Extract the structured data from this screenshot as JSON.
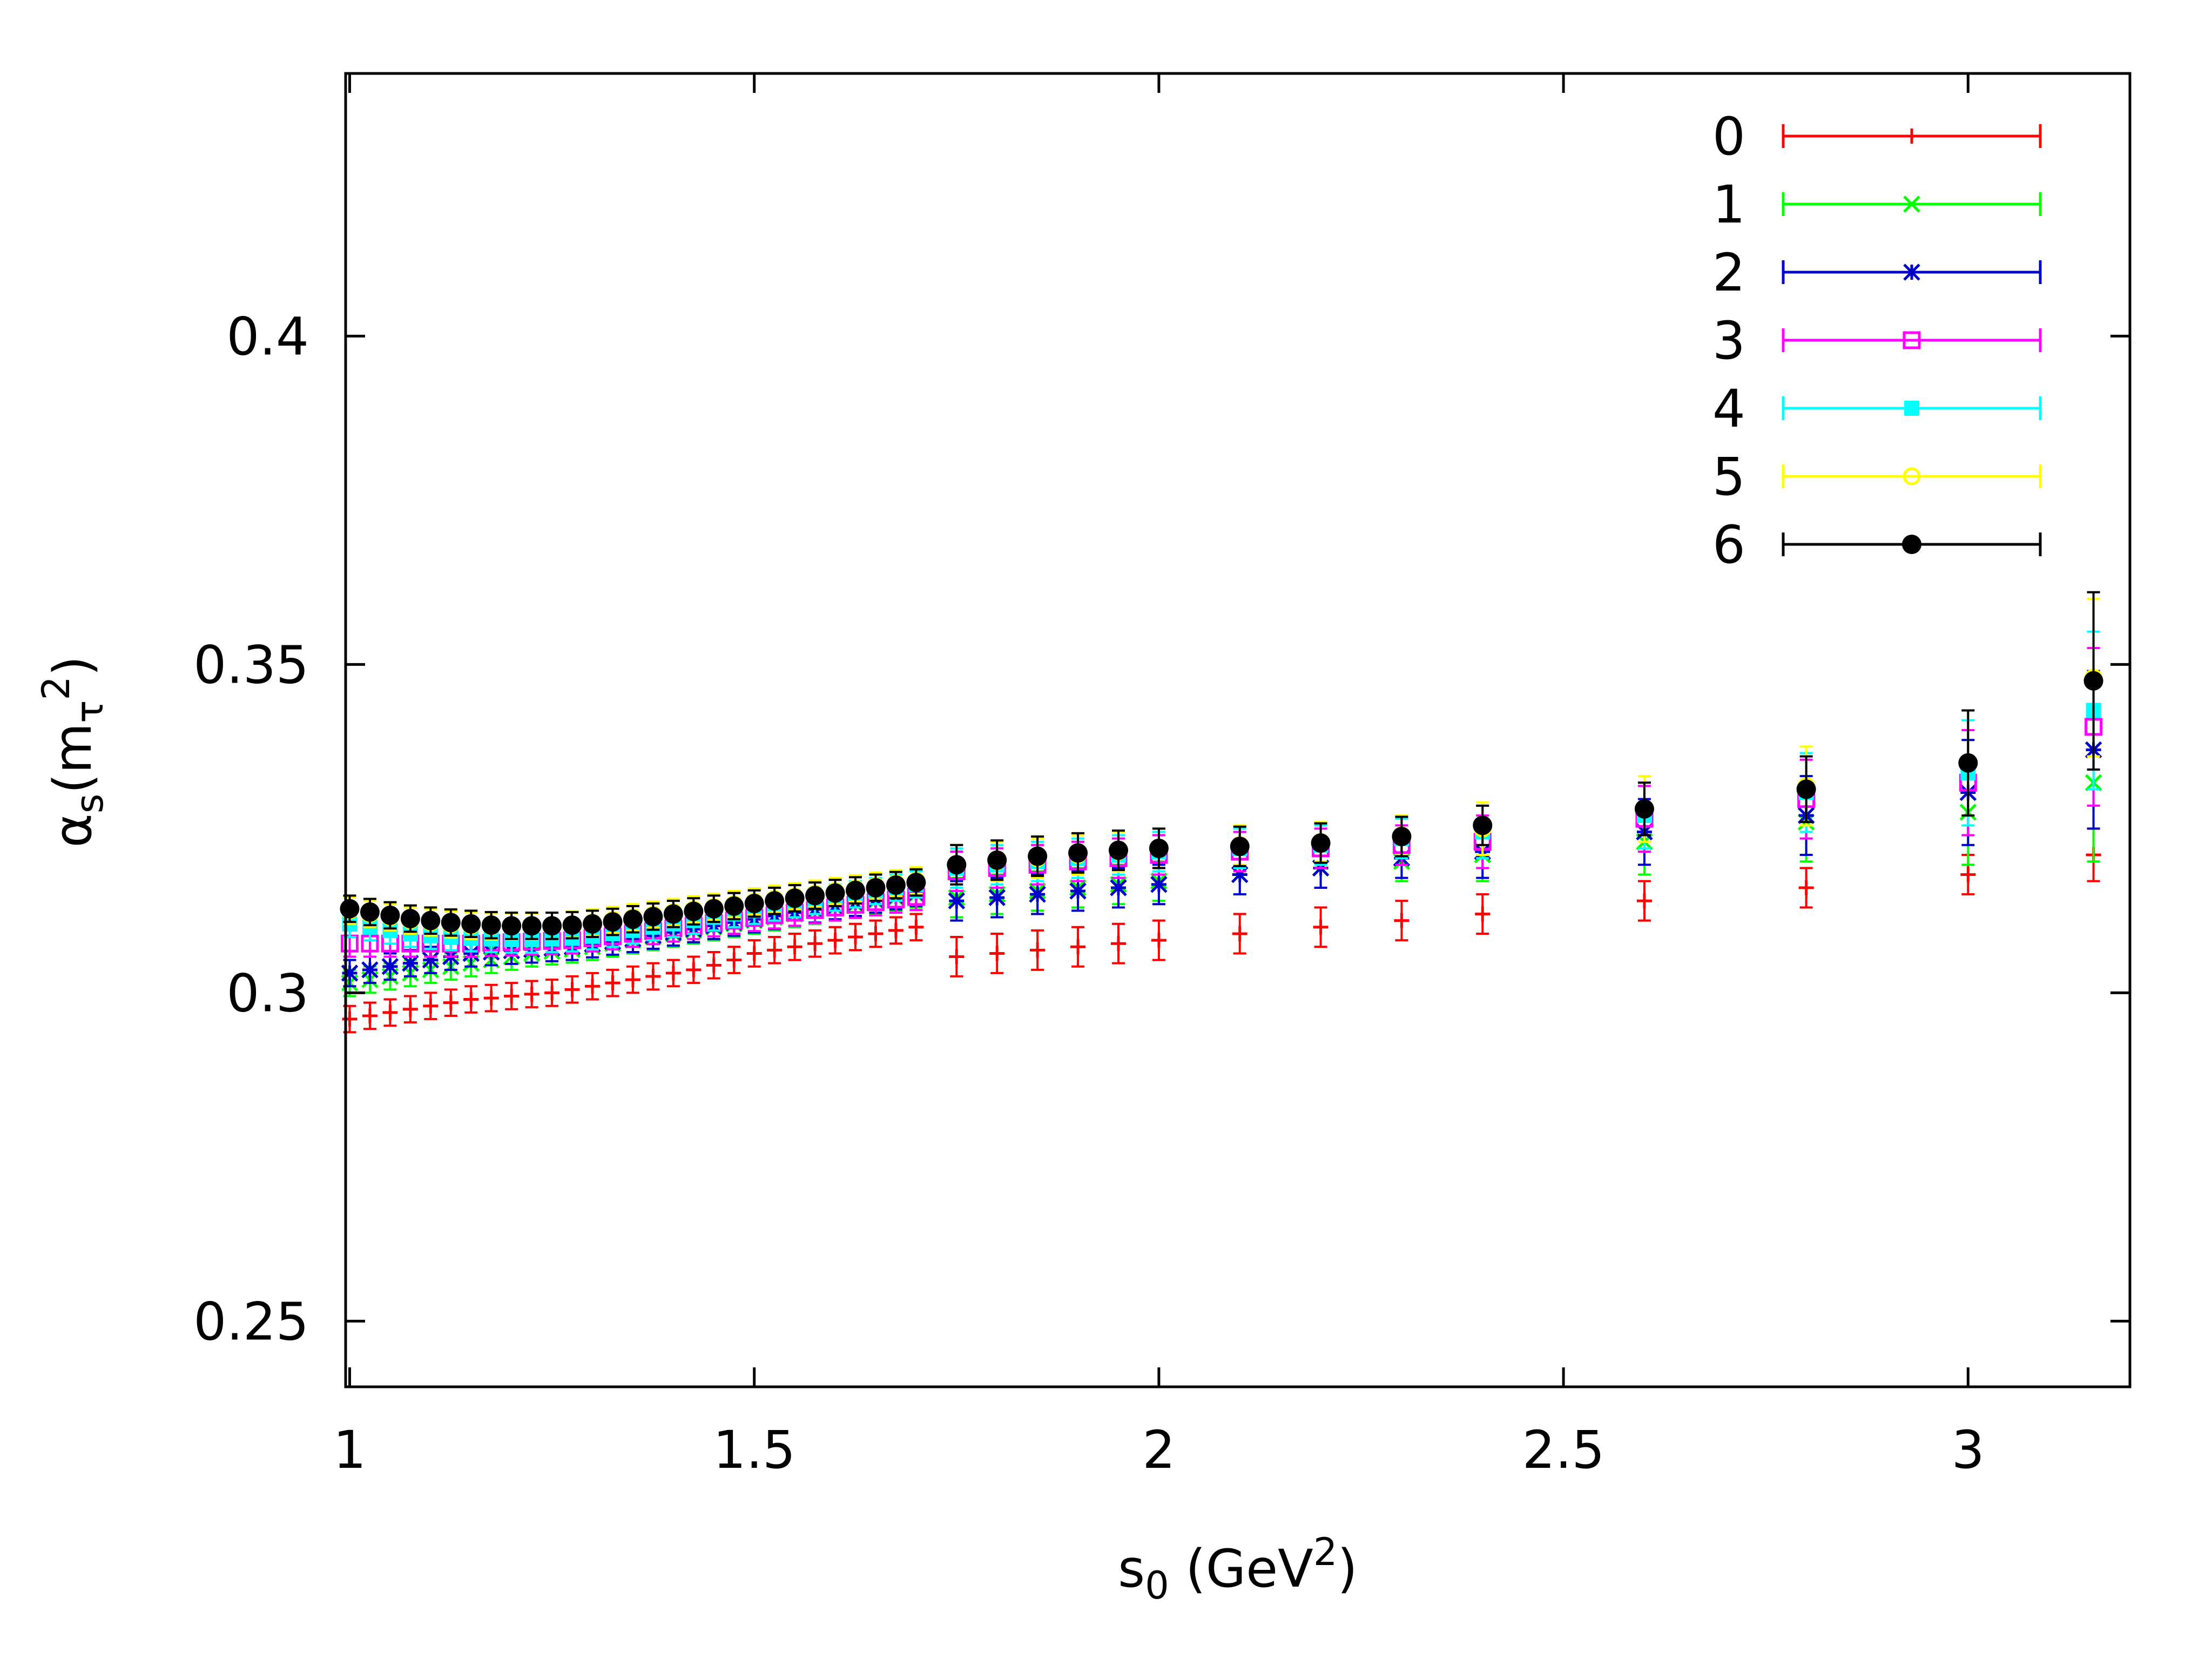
{
  "chart_data": {
    "type": "scatter",
    "title": "",
    "xlabel": {
      "base": "s",
      "sub": "0",
      "paren_open": " (GeV",
      "sup": "2",
      "paren_close": ")"
    },
    "ylabel": {
      "base": "α",
      "sub": "s",
      "open": "(m",
      "sub2": "τ",
      "sup": "2",
      "close": ")"
    },
    "xlim": [
      0.995,
      3.2
    ],
    "ylim": [
      0.24,
      0.44
    ],
    "xticks": [
      {
        "value": 1,
        "label": "1"
      },
      {
        "value": 1.5,
        "label": "1.5"
      },
      {
        "value": 2,
        "label": "2"
      },
      {
        "value": 2.5,
        "label": "2.5"
      },
      {
        "value": 3,
        "label": "3"
      }
    ],
    "yticks": [
      {
        "value": 0.25,
        "label": "0.25"
      },
      {
        "value": 0.3,
        "label": "0.3"
      },
      {
        "value": 0.35,
        "label": "0.35"
      },
      {
        "value": 0.4,
        "label": "0.4"
      }
    ],
    "legend_position": "top-right",
    "x": [
      1.0,
      1.025,
      1.05,
      1.075,
      1.1,
      1.125,
      1.15,
      1.175,
      1.2,
      1.225,
      1.25,
      1.275,
      1.3,
      1.325,
      1.35,
      1.375,
      1.4,
      1.425,
      1.45,
      1.475,
      1.5,
      1.525,
      1.55,
      1.575,
      1.6,
      1.625,
      1.65,
      1.675,
      1.7,
      1.75,
      1.8,
      1.85,
      1.9,
      1.95,
      2.0,
      2.1,
      2.2,
      2.3,
      2.4,
      2.6,
      2.8,
      3.0,
      3.155
    ],
    "series": [
      {
        "name": "0",
        "color": "#ff0000",
        "marker": "plus",
        "values": [
          0.296,
          0.2965,
          0.297,
          0.2975,
          0.298,
          0.2985,
          0.299,
          0.2992,
          0.2995,
          0.2998,
          0.3,
          0.3005,
          0.301,
          0.3015,
          0.302,
          0.3025,
          0.303,
          0.3035,
          0.3042,
          0.305,
          0.306,
          0.3065,
          0.307,
          0.3075,
          0.308,
          0.3085,
          0.309,
          0.3095,
          0.31,
          0.3055,
          0.306,
          0.3065,
          0.307,
          0.3075,
          0.308,
          0.309,
          0.31,
          0.311,
          0.312,
          0.314,
          0.316,
          0.318,
          0.321
        ],
        "errors": [
          0.002,
          0.002,
          0.002,
          0.002,
          0.002,
          0.002,
          0.002,
          0.002,
          0.002,
          0.002,
          0.002,
          0.002,
          0.002,
          0.002,
          0.002,
          0.002,
          0.002,
          0.002,
          0.002,
          0.002,
          0.002,
          0.002,
          0.002,
          0.002,
          0.002,
          0.002,
          0.002,
          0.002,
          0.002,
          0.003,
          0.003,
          0.003,
          0.003,
          0.003,
          0.003,
          0.003,
          0.003,
          0.003,
          0.003,
          0.003,
          0.003,
          0.003,
          0.004
        ]
      },
      {
        "name": "1",
        "color": "#00ff00",
        "marker": "cross",
        "values": [
          0.3015,
          0.302,
          0.3025,
          0.303,
          0.3035,
          0.304,
          0.3045,
          0.305,
          0.3055,
          0.306,
          0.3063,
          0.3066,
          0.307,
          0.3075,
          0.308,
          0.3085,
          0.309,
          0.3095,
          0.31,
          0.3105,
          0.311,
          0.3115,
          0.312,
          0.3125,
          0.313,
          0.3135,
          0.314,
          0.3145,
          0.315,
          0.3145,
          0.315,
          0.3155,
          0.316,
          0.3165,
          0.317,
          0.318,
          0.319,
          0.32,
          0.321,
          0.323,
          0.326,
          0.3275,
          0.332
        ],
        "errors": [
          0.002,
          0.002,
          0.002,
          0.002,
          0.002,
          0.002,
          0.002,
          0.002,
          0.002,
          0.002,
          0.002,
          0.002,
          0.002,
          0.002,
          0.002,
          0.002,
          0.002,
          0.002,
          0.002,
          0.002,
          0.002,
          0.002,
          0.002,
          0.002,
          0.002,
          0.002,
          0.002,
          0.002,
          0.002,
          0.003,
          0.003,
          0.003,
          0.003,
          0.003,
          0.003,
          0.003,
          0.003,
          0.003,
          0.004,
          0.005,
          0.006,
          0.008,
          0.012
        ]
      },
      {
        "name": "2",
        "color": "#0000cc",
        "marker": "star",
        "values": [
          0.303,
          0.3035,
          0.304,
          0.3045,
          0.305,
          0.3055,
          0.306,
          0.3062,
          0.3064,
          0.3066,
          0.3068,
          0.307,
          0.3074,
          0.3078,
          0.3082,
          0.3087,
          0.3092,
          0.3097,
          0.3102,
          0.3107,
          0.3112,
          0.3117,
          0.3122,
          0.3127,
          0.3132,
          0.3137,
          0.3142,
          0.3147,
          0.3152,
          0.314,
          0.3145,
          0.315,
          0.3155,
          0.316,
          0.3165,
          0.318,
          0.319,
          0.3205,
          0.3215,
          0.3245,
          0.327,
          0.3305,
          0.337
        ],
        "errors": [
          0.002,
          0.002,
          0.002,
          0.002,
          0.002,
          0.002,
          0.002,
          0.002,
          0.002,
          0.002,
          0.002,
          0.002,
          0.002,
          0.002,
          0.002,
          0.002,
          0.002,
          0.002,
          0.002,
          0.002,
          0.002,
          0.002,
          0.002,
          0.002,
          0.002,
          0.002,
          0.002,
          0.002,
          0.002,
          0.003,
          0.003,
          0.003,
          0.003,
          0.003,
          0.003,
          0.003,
          0.003,
          0.003,
          0.004,
          0.005,
          0.006,
          0.008,
          0.012
        ]
      },
      {
        "name": "3",
        "color": "#ff00ff",
        "marker": "open-square",
        "values": [
          0.3075,
          0.3075,
          0.3075,
          0.3075,
          0.3075,
          0.3075,
          0.3075,
          0.3076,
          0.3077,
          0.3078,
          0.3079,
          0.308,
          0.3083,
          0.3086,
          0.309,
          0.3094,
          0.3098,
          0.3102,
          0.3106,
          0.311,
          0.3114,
          0.3118,
          0.3122,
          0.3126,
          0.313,
          0.3134,
          0.3138,
          0.3142,
          0.3146,
          0.3185,
          0.319,
          0.3195,
          0.32,
          0.3205,
          0.321,
          0.3215,
          0.322,
          0.3225,
          0.323,
          0.3265,
          0.3295,
          0.332,
          0.3405
        ],
        "errors": [
          0.002,
          0.002,
          0.002,
          0.002,
          0.002,
          0.002,
          0.002,
          0.002,
          0.002,
          0.002,
          0.002,
          0.002,
          0.002,
          0.002,
          0.002,
          0.002,
          0.002,
          0.002,
          0.002,
          0.002,
          0.002,
          0.002,
          0.002,
          0.002,
          0.002,
          0.002,
          0.002,
          0.002,
          0.002,
          0.003,
          0.003,
          0.003,
          0.003,
          0.003,
          0.003,
          0.003,
          0.003,
          0.003,
          0.004,
          0.005,
          0.006,
          0.008,
          0.012
        ]
      },
      {
        "name": "4",
        "color": "#00ffff",
        "marker": "filled-square",
        "values": [
          0.3105,
          0.31,
          0.3095,
          0.309,
          0.3087,
          0.3085,
          0.3083,
          0.3082,
          0.3081,
          0.3081,
          0.3082,
          0.3083,
          0.3086,
          0.309,
          0.3095,
          0.31,
          0.3105,
          0.311,
          0.3115,
          0.312,
          0.3125,
          0.313,
          0.3135,
          0.314,
          0.3145,
          0.315,
          0.3155,
          0.316,
          0.3165,
          0.319,
          0.3195,
          0.32,
          0.3205,
          0.321,
          0.3215,
          0.322,
          0.3225,
          0.3235,
          0.3245,
          0.327,
          0.3305,
          0.3335,
          0.343
        ],
        "errors": [
          0.002,
          0.002,
          0.002,
          0.002,
          0.002,
          0.002,
          0.002,
          0.002,
          0.002,
          0.002,
          0.002,
          0.002,
          0.002,
          0.002,
          0.002,
          0.002,
          0.002,
          0.002,
          0.002,
          0.002,
          0.002,
          0.002,
          0.002,
          0.002,
          0.002,
          0.002,
          0.002,
          0.002,
          0.002,
          0.003,
          0.003,
          0.003,
          0.003,
          0.003,
          0.003,
          0.003,
          0.003,
          0.003,
          0.004,
          0.005,
          0.006,
          0.008,
          0.012
        ]
      },
      {
        "name": "5",
        "color": "#ffff00",
        "marker": "open-circle",
        "values": [
          0.3125,
          0.312,
          0.3115,
          0.311,
          0.3107,
          0.3104,
          0.3102,
          0.3101,
          0.3101,
          0.3101,
          0.3102,
          0.3104,
          0.3107,
          0.3111,
          0.3115,
          0.3119,
          0.3123,
          0.3127,
          0.3131,
          0.3135,
          0.3139,
          0.3143,
          0.3147,
          0.3151,
          0.3155,
          0.3159,
          0.3163,
          0.3167,
          0.3171,
          0.3195,
          0.32,
          0.3205,
          0.321,
          0.3215,
          0.322,
          0.3225,
          0.323,
          0.324,
          0.325,
          0.328,
          0.3315,
          0.335,
          0.348
        ],
        "errors": [
          0.002,
          0.002,
          0.002,
          0.002,
          0.002,
          0.002,
          0.002,
          0.002,
          0.002,
          0.002,
          0.002,
          0.002,
          0.002,
          0.002,
          0.002,
          0.002,
          0.002,
          0.002,
          0.002,
          0.002,
          0.002,
          0.002,
          0.002,
          0.002,
          0.002,
          0.002,
          0.002,
          0.002,
          0.002,
          0.003,
          0.003,
          0.003,
          0.003,
          0.003,
          0.003,
          0.003,
          0.003,
          0.003,
          0.004,
          0.005,
          0.006,
          0.008,
          0.012
        ]
      },
      {
        "name": "6",
        "color": "#000000",
        "marker": "filled-circle",
        "values": [
          0.3128,
          0.3123,
          0.3118,
          0.3113,
          0.311,
          0.3107,
          0.3105,
          0.3103,
          0.3102,
          0.3102,
          0.3102,
          0.3103,
          0.3105,
          0.3108,
          0.3112,
          0.3116,
          0.312,
          0.3124,
          0.3128,
          0.3132,
          0.3136,
          0.314,
          0.3144,
          0.3148,
          0.3152,
          0.3156,
          0.316,
          0.3164,
          0.3168,
          0.3195,
          0.3202,
          0.3208,
          0.3213,
          0.3217,
          0.322,
          0.3223,
          0.3228,
          0.3238,
          0.3255,
          0.328,
          0.331,
          0.335,
          0.3475
        ],
        "errors": [
          0.002,
          0.002,
          0.002,
          0.002,
          0.002,
          0.002,
          0.002,
          0.002,
          0.002,
          0.002,
          0.002,
          0.002,
          0.002,
          0.002,
          0.002,
          0.002,
          0.002,
          0.002,
          0.002,
          0.002,
          0.002,
          0.002,
          0.002,
          0.002,
          0.002,
          0.002,
          0.002,
          0.002,
          0.002,
          0.003,
          0.003,
          0.003,
          0.003,
          0.003,
          0.003,
          0.003,
          0.003,
          0.003,
          0.003,
          0.004,
          0.005,
          0.008,
          0.0135
        ]
      }
    ]
  }
}
